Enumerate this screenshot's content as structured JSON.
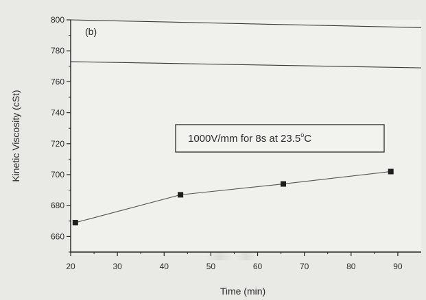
{
  "chart_data": {
    "type": "line",
    "panel_label": "(b)",
    "xlabel": "Time (min)",
    "ylabel": "Kinetic Viscosity (cSt)",
    "xlim": [
      20,
      95
    ],
    "ylim": [
      650,
      800
    ],
    "xticks": [
      20,
      30,
      40,
      50,
      60,
      70,
      80,
      90
    ],
    "yticks": [
      660,
      680,
      700,
      720,
      740,
      760,
      780,
      800
    ],
    "series": [
      {
        "x": [
          21,
          43.5,
          65.5,
          88.5
        ],
        "y": [
          669,
          687,
          694,
          702
        ],
        "marker": "square",
        "color": "#1e1e1e"
      }
    ],
    "annotation": {
      "text": "1000V/mm for 8s at 23.5",
      "superscript": "o",
      "suffix": "C"
    },
    "reference_lines": [
      {
        "y_start": 800,
        "y_end": 795
      },
      {
        "y_start": 773,
        "y_end": 769
      }
    ],
    "grid": false,
    "legend": "none"
  }
}
